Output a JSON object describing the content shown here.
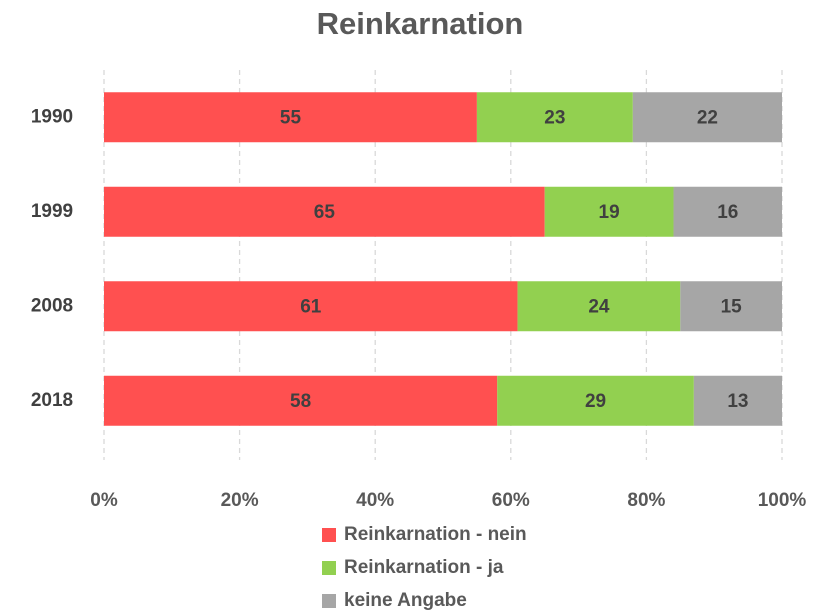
{
  "chart_data": {
    "type": "stacked_barh",
    "title": "Reinkarnation",
    "categories": [
      "1990",
      "1999",
      "2008",
      "2018"
    ],
    "series": [
      {
        "name": "Reinkarnation - nein",
        "color": "#ff5050",
        "values": [
          55,
          65,
          61,
          58
        ]
      },
      {
        "name": "Reinkarnation - ja",
        "color": "#92d050",
        "values": [
          23,
          19,
          24,
          29
        ]
      },
      {
        "name": "keine Angabe",
        "color": "#a6a6a6",
        "values": [
          22,
          16,
          15,
          13
        ]
      }
    ],
    "xlim": [
      0,
      100
    ],
    "xticks": [
      {
        "value": 0,
        "label": "0%"
      },
      {
        "value": 20,
        "label": "20%"
      },
      {
        "value": 40,
        "label": "40%"
      },
      {
        "value": 60,
        "label": "60%"
      },
      {
        "value": 80,
        "label": "80%"
      },
      {
        "value": 100,
        "label": "100%"
      }
    ],
    "grid": true,
    "legend": "bottom"
  }
}
